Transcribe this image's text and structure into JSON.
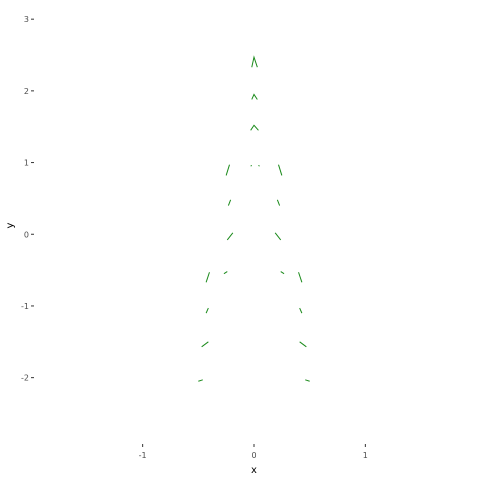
{
  "chart_data": {
    "type": "line",
    "title": "",
    "xlabel": "x",
    "ylabel": "y",
    "xlim": [
      -1.85,
      1.85
    ],
    "ylim": [
      -2.8,
      3.1
    ],
    "xticks": [
      -1,
      0,
      1
    ],
    "yticks": [
      -2,
      -1,
      0,
      1,
      2,
      3
    ],
    "xtick_labels": [
      "-1",
      "0",
      "1"
    ],
    "ytick_labels": [
      "-2",
      "-1",
      "0",
      "1",
      "2",
      "3"
    ],
    "grid": false,
    "legend": "none",
    "line_color": "#1a8a1a",
    "segments": [
      [
        [
          -0.02,
          2.33
        ],
        [
          0.0,
          2.47
        ],
        [
          0.03,
          2.33
        ]
      ],
      [
        [
          -0.02,
          1.88
        ],
        [
          0.0,
          1.95
        ],
        [
          0.03,
          1.88
        ]
      ],
      [
        [
          -0.03,
          1.45
        ],
        [
          0.0,
          1.52
        ],
        [
          0.04,
          1.45
        ]
      ],
      [
        [
          -0.03,
          0.95
        ],
        [
          -0.02,
          0.96
        ]
      ],
      [
        [
          0.04,
          0.96
        ],
        [
          0.05,
          0.95
        ]
      ],
      [
        [
          -0.25,
          0.82
        ],
        [
          -0.22,
          0.97
        ]
      ],
      [
        [
          0.22,
          0.97
        ],
        [
          0.25,
          0.82
        ]
      ],
      [
        [
          -0.23,
          0.4
        ],
        [
          -0.21,
          0.48
        ]
      ],
      [
        [
          0.21,
          0.48
        ],
        [
          0.23,
          0.4
        ]
      ],
      [
        [
          -0.24,
          -0.08
        ],
        [
          -0.19,
          0.02
        ]
      ],
      [
        [
          0.19,
          0.02
        ],
        [
          0.24,
          -0.08
        ]
      ],
      [
        [
          -0.27,
          -0.55
        ],
        [
          -0.24,
          -0.52
        ]
      ],
      [
        [
          0.24,
          -0.52
        ],
        [
          0.27,
          -0.55
        ]
      ],
      [
        [
          -0.43,
          -0.67
        ],
        [
          -0.4,
          -0.53
        ]
      ],
      [
        [
          0.4,
          -0.53
        ],
        [
          0.43,
          -0.67
        ]
      ],
      [
        [
          -0.43,
          -1.1
        ],
        [
          -0.41,
          -1.03
        ]
      ],
      [
        [
          0.41,
          -1.03
        ],
        [
          0.43,
          -1.1
        ]
      ],
      [
        [
          -0.47,
          -1.57
        ],
        [
          -0.41,
          -1.5
        ]
      ],
      [
        [
          0.41,
          -1.5
        ],
        [
          0.47,
          -1.57
        ]
      ],
      [
        [
          -0.5,
          -2.05
        ],
        [
          -0.46,
          -2.03
        ]
      ],
      [
        [
          0.46,
          -2.03
        ],
        [
          0.5,
          -2.05
        ]
      ]
    ]
  }
}
